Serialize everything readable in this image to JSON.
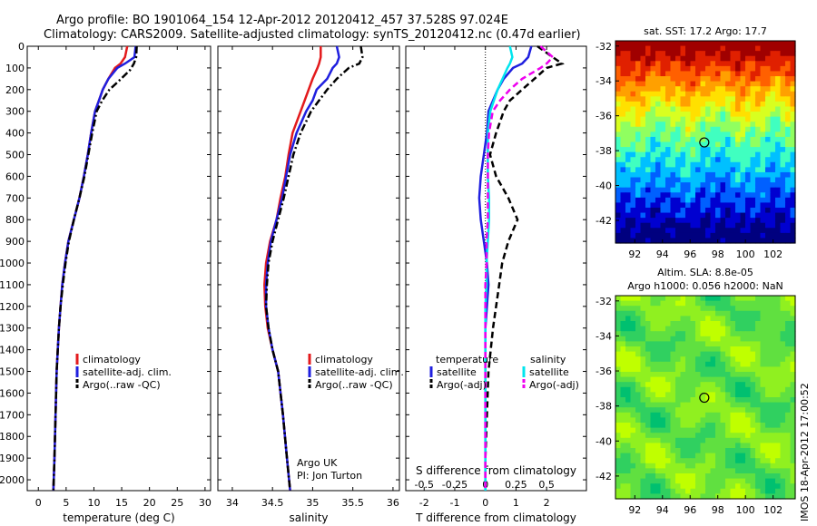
{
  "header": {
    "line1": "Argo profile: BO 1901064_154 12-Apr-2012 20120412_457 37.528S 97.024E",
    "line2": "Climatology: CARS2009. Satellite-adjusted climatology: synTS_20120412.nc (0.47d earlier)"
  },
  "colors": {
    "climatology": "#e31a1c",
    "satellite": "#1f1fdf",
    "argo": "#000000",
    "salinity_satellite": "#00e5ee",
    "salinity_argo": "#ee00ee"
  },
  "chart_data": [
    {
      "type": "line",
      "xlabel": "temperature (deg C)",
      "ylabel": "",
      "xlim": [
        -2,
        31
      ],
      "ylim": [
        2050,
        0
      ],
      "y_reversed": true,
      "xticks": [
        0,
        5,
        10,
        15,
        20,
        25,
        30
      ],
      "yticks": [
        0,
        100,
        200,
        300,
        400,
        500,
        600,
        700,
        800,
        900,
        1000,
        1100,
        1200,
        1300,
        1400,
        1500,
        1600,
        1700,
        1800,
        1900,
        2000
      ],
      "legend": [
        "climatology",
        "satellite-adj. clim.",
        "Argo(..raw -QC)"
      ],
      "series": [
        {
          "name": "climatology",
          "style": "solid",
          "color": "#e31a1c",
          "x": [
            16.0,
            15.6,
            14.8,
            13.8,
            12.6,
            11.6,
            10.9,
            10.2,
            9.5,
            8.9,
            8.2,
            7.4,
            6.4,
            5.4,
            4.8,
            4.3,
            4.0,
            3.7,
            3.3,
            3.1,
            2.9,
            2.7
          ],
          "y": [
            0,
            50,
            80,
            100,
            150,
            200,
            250,
            300,
            400,
            500,
            600,
            700,
            800,
            900,
            1000,
            1100,
            1200,
            1300,
            1500,
            1700,
            1900,
            2050
          ]
        },
        {
          "name": "satellite-adj. clim.",
          "style": "solid",
          "color": "#1f1fdf",
          "x": [
            17.5,
            17.3,
            15.6,
            14.2,
            12.6,
            11.6,
            10.9,
            10.2,
            9.5,
            8.9,
            8.2,
            7.4,
            6.4,
            5.4,
            4.8,
            4.3,
            4.0,
            3.7,
            3.3,
            3.1,
            2.9,
            2.7
          ],
          "y": [
            0,
            50,
            80,
            100,
            150,
            200,
            250,
            300,
            400,
            500,
            600,
            700,
            800,
            900,
            1000,
            1100,
            1200,
            1300,
            1500,
            1700,
            1900,
            2050
          ]
        },
        {
          "name": "Argo(..raw -QC)",
          "style": "dashdot",
          "color": "#000000",
          "x": [
            17.7,
            17.6,
            17.2,
            16.5,
            14.5,
            12.8,
            11.5,
            10.5,
            9.7,
            9.0,
            8.3,
            7.4,
            6.4,
            5.5,
            4.9,
            4.4,
            4.0,
            3.7,
            3.3,
            3.1,
            2.9,
            2.7
          ],
          "y": [
            0,
            50,
            80,
            110,
            160,
            200,
            250,
            300,
            400,
            500,
            600,
            700,
            800,
            900,
            1000,
            1100,
            1200,
            1300,
            1500,
            1700,
            1900,
            2050
          ]
        }
      ]
    },
    {
      "type": "line",
      "xlabel": "salinity",
      "ylabel": "",
      "xlim": [
        33.82,
        36.08
      ],
      "ylim": [
        2050,
        0
      ],
      "y_reversed": true,
      "xticks": [
        34,
        34.5,
        35,
        35.5,
        36
      ],
      "legend": [
        "climatology",
        "satellite-adj. clim.",
        "Argo(..raw -QC)"
      ],
      "annotations": [
        "Argo UK",
        "PI: Jon Turton"
      ],
      "series": [
        {
          "name": "climatology",
          "style": "solid",
          "color": "#e31a1c",
          "x": [
            35.1,
            35.1,
            35.08,
            35.06,
            35.0,
            34.95,
            34.9,
            34.85,
            34.75,
            34.7,
            34.66,
            34.6,
            34.55,
            34.47,
            34.42,
            34.4,
            34.41,
            34.44,
            34.5,
            34.57,
            34.63,
            34.68,
            34.72
          ],
          "y": [
            0,
            50,
            80,
            100,
            150,
            200,
            250,
            300,
            400,
            500,
            600,
            700,
            800,
            900,
            1000,
            1100,
            1200,
            1300,
            1400,
            1500,
            1700,
            1900,
            2050
          ]
        },
        {
          "name": "satellite-adj. clim.",
          "style": "solid",
          "color": "#1f1fdf",
          "x": [
            35.3,
            35.33,
            35.3,
            35.25,
            35.18,
            35.05,
            35.0,
            34.92,
            34.8,
            34.72,
            34.67,
            34.62,
            34.55,
            34.48,
            34.44,
            34.42,
            34.42,
            34.45,
            34.5,
            34.57,
            34.63,
            34.68,
            34.72
          ],
          "y": [
            0,
            50,
            80,
            100,
            150,
            200,
            250,
            300,
            400,
            500,
            600,
            700,
            800,
            900,
            1000,
            1100,
            1200,
            1300,
            1400,
            1500,
            1700,
            1900,
            2050
          ]
        },
        {
          "name": "Argo(..raw -QC)",
          "style": "dashdot",
          "color": "#000000",
          "x": [
            35.6,
            35.62,
            35.58,
            35.45,
            35.3,
            35.18,
            35.08,
            34.98,
            34.85,
            34.76,
            34.7,
            34.64,
            34.57,
            34.5,
            34.45,
            34.43,
            34.42,
            34.45,
            34.5,
            34.57,
            34.63,
            34.68,
            34.72
          ],
          "y": [
            0,
            50,
            80,
            100,
            150,
            200,
            250,
            300,
            400,
            500,
            600,
            700,
            800,
            900,
            1000,
            1100,
            1200,
            1300,
            1400,
            1500,
            1700,
            1900,
            2050
          ]
        }
      ]
    },
    {
      "type": "line",
      "xlabel": "T difference from climatology",
      "x2label": "S difference from climatology",
      "xlim": [
        -2.6,
        3.3
      ],
      "x2lim": [
        -0.65,
        0.825
      ],
      "ylim": [
        2050,
        0
      ],
      "y_reversed": true,
      "xticks": [
        -2,
        -1,
        0,
        1,
        2
      ],
      "x2ticks": [
        "-0.5",
        "-0.25",
        "0",
        "0.25",
        "0.5"
      ],
      "legend_titles": [
        "temperature",
        "salinity"
      ],
      "legend": [
        "satellite",
        "Argo(-adj)",
        "satellite",
        "Argo(-adj)"
      ],
      "series": [
        {
          "name": "temperature satellite",
          "style": "solid",
          "color": "#1f1fdf",
          "x": [
            1.5,
            1.4,
            1.2,
            0.9,
            0.6,
            0.4,
            0.25,
            0.1,
            0.05,
            -0.05,
            -0.15,
            -0.2,
            -0.15,
            -0.05,
            0.05,
            0.1,
            0.05,
            0.0,
            0.0,
            0.0,
            0.0,
            0.0
          ],
          "y": [
            0,
            50,
            80,
            100,
            150,
            200,
            250,
            300,
            400,
            500,
            600,
            700,
            800,
            900,
            1000,
            1100,
            1200,
            1300,
            1500,
            1700,
            1900,
            2050
          ]
        },
        {
          "name": "temperature Argo(-adj)",
          "style": "dashed",
          "color": "#000000",
          "x": [
            1.7,
            2.2,
            2.5,
            2.0,
            1.6,
            1.2,
            0.8,
            0.6,
            0.35,
            0.15,
            0.35,
            0.75,
            1.05,
            0.75,
            0.55,
            0.45,
            0.35,
            0.25,
            0.1,
            0.05,
            0.0,
            0.0
          ],
          "y": [
            0,
            50,
            80,
            100,
            150,
            200,
            250,
            300,
            400,
            500,
            600,
            700,
            800,
            900,
            1000,
            1100,
            1200,
            1300,
            1500,
            1700,
            1900,
            2050
          ]
        },
        {
          "name": "salinity satellite",
          "style": "solid",
          "color": "#00e5ee",
          "x": [
            0.2,
            0.22,
            0.2,
            0.18,
            0.14,
            0.1,
            0.07,
            0.04,
            0.02,
            0.02,
            0.02,
            0.03,
            0.03,
            0.02,
            0.01,
            0.01,
            0.0,
            0.0,
            0.0,
            0.0,
            0.0,
            0.0
          ],
          "y": [
            0,
            50,
            80,
            100,
            150,
            200,
            250,
            300,
            400,
            500,
            600,
            700,
            800,
            900,
            1000,
            1100,
            1200,
            1300,
            1500,
            1700,
            1900,
            2050
          ]
        },
        {
          "name": "salinity Argo(-adj)",
          "style": "dashed",
          "color": "#ee00ee",
          "x": [
            0.45,
            0.55,
            0.5,
            0.45,
            0.3,
            0.2,
            0.12,
            0.06,
            0.03,
            0.02,
            0.02,
            0.02,
            0.02,
            0.01,
            0.01,
            0.0,
            0.0,
            0.0,
            0.0,
            0.0,
            0.0,
            0.0
          ],
          "y": [
            0,
            50,
            80,
            100,
            150,
            200,
            250,
            300,
            400,
            500,
            600,
            700,
            800,
            900,
            1000,
            1100,
            1200,
            1300,
            1500,
            1700,
            1900,
            2050
          ]
        }
      ]
    },
    {
      "type": "heatmap",
      "title": "sat. SST: 17.2 Argo: 17.7",
      "xlim": [
        90.6,
        103.6
      ],
      "ylim": [
        -43.3,
        -31.7
      ],
      "xticks": [
        92,
        94,
        96,
        98,
        100,
        102
      ],
      "yticks": [
        -32,
        -34,
        -36,
        -38,
        -40,
        -42
      ],
      "marker": {
        "lon": 97.024,
        "lat": -37.528
      },
      "colorscale": [
        "#00007f",
        "#0000d0",
        "#0060ff",
        "#00c0ff",
        "#40ffc0",
        "#90ff60",
        "#d8ff20",
        "#ffe000",
        "#ffa000",
        "#ff6000",
        "#e02000",
        "#a00000"
      ],
      "field": "sst_front"
    },
    {
      "type": "heatmap",
      "title": "Altim. SLA: 8.8e-05",
      "subtitle": "Argo h1000: 0.056 h2000: NaN",
      "xlim": [
        90.6,
        103.6
      ],
      "ylim": [
        -43.3,
        -31.7
      ],
      "xticks": [
        92,
        94,
        96,
        98,
        100,
        102
      ],
      "yticks": [
        -32,
        -34,
        -36,
        -38,
        -40,
        -42
      ],
      "marker": {
        "lon": 97.024,
        "lat": -37.528
      },
      "colorscale": [
        "#00c070",
        "#30d060",
        "#60e040",
        "#90f020",
        "#c0ff00"
      ],
      "field": "sla_blobs"
    }
  ],
  "footer": {
    "stamp": "IMOS 18-Apr-2012 17:00:52"
  }
}
